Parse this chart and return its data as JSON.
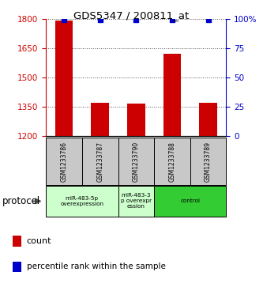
{
  "title": "GDS5347 / 200811_at",
  "samples": [
    "GSM1233786",
    "GSM1233787",
    "GSM1233790",
    "GSM1233788",
    "GSM1233789"
  ],
  "counts": [
    1790,
    1370,
    1365,
    1620,
    1370
  ],
  "percentiles": [
    99,
    99,
    99,
    99,
    99
  ],
  "ylim_left": [
    1200,
    1800
  ],
  "ylim_right": [
    0,
    100
  ],
  "yticks_left": [
    1200,
    1350,
    1500,
    1650,
    1800
  ],
  "yticks_right": [
    0,
    25,
    50,
    75,
    100
  ],
  "bar_color": "#cc0000",
  "dot_color": "#0000cc",
  "left_axis_color": "#cc0000",
  "right_axis_color": "#0000cc",
  "grid_color": "#000000",
  "background_color": "#ffffff",
  "label_box_color": "#c8c8c8",
  "proto_spans": [
    [
      0,
      2,
      "miR-483-5p\noverexpression",
      "#ccffcc"
    ],
    [
      2,
      3,
      "miR-483-3\np overexpr\nession",
      "#ccffcc"
    ],
    [
      3,
      5,
      "control",
      "#33cc33"
    ]
  ],
  "protocol_label": "protocol"
}
